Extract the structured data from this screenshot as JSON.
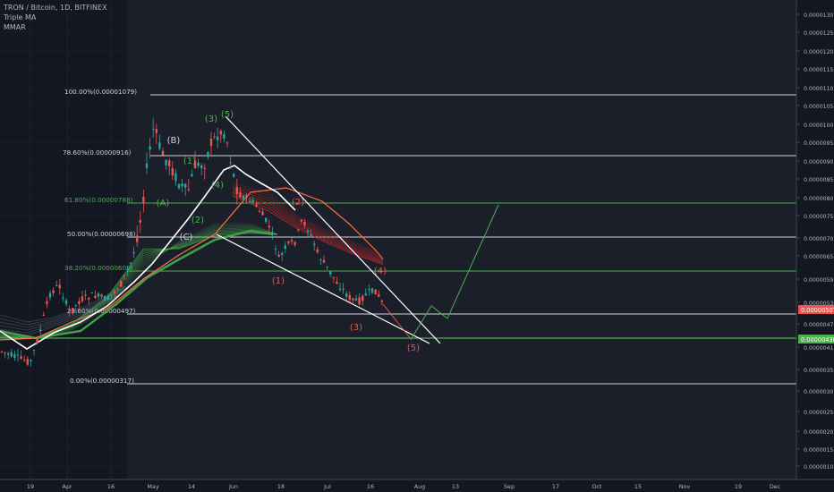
{
  "legend": {
    "symbol": "TRON / Bitcoin, 1D, BITFINEX",
    "indicator1": "Triple MA",
    "indicator2": "MMAR"
  },
  "price_axis": {
    "ticks": [
      "0.00001300",
      "0.00001250",
      "0.00001200",
      "0.00001150",
      "0.00001100",
      "0.00001050",
      "0.00001000",
      "0.00000950",
      "0.00000900",
      "0.00000850",
      "0.00000800",
      "0.00000750",
      "0.00000700",
      "0.00000650",
      "0.00000590",
      "0.00000530",
      "0.00000470",
      "0.00000410",
      "0.00000350",
      "0.00000300",
      "0.00000250",
      "0.00000200",
      "0.00000150",
      "0.00000100"
    ],
    "current_price_label": "0.00000507",
    "target_label": "0.00000438",
    "current_color": "#ef5350",
    "target_color": "#4caf50"
  },
  "time_axis": {
    "labels": [
      "19",
      "Apr",
      "16",
      "May",
      "14",
      "Jun",
      "18",
      "Jul",
      "16",
      "Aug",
      "13",
      "Sep",
      "17",
      "Oct",
      "15",
      "Nov",
      "19",
      "Dec"
    ]
  },
  "fib_levels": [
    {
      "label": "100.00%(0.00001079)",
      "color": "#d1d4dc"
    },
    {
      "label": "78.60%(0.00000916)",
      "color": "#d1d4dc"
    },
    {
      "label": "61.80%(0.00000788)",
      "color": "#4caf50"
    },
    {
      "label": "50.00%(0.00000698)",
      "color": "#d1d4dc"
    },
    {
      "label": "38.20%(0.00000608)",
      "color": "#4caf50"
    },
    {
      "label": "23.60%(0.00000497)",
      "color": "#d1d4dc"
    },
    {
      "label": "0.00%(0.00000317)",
      "color": "#d1d4dc"
    }
  ],
  "wave_labels": [
    {
      "text": "(A)",
      "color": "#4caf50"
    },
    {
      "text": "(B)",
      "color": "#d1d4dc"
    },
    {
      "text": "(C)",
      "color": "#d1d4dc"
    },
    {
      "text": "(1)",
      "color": "#4caf50"
    },
    {
      "text": "(2)",
      "color": "#4caf50"
    },
    {
      "text": "(3)",
      "color": "#4caf50"
    },
    {
      "text": "(4)",
      "color": "#4caf50"
    },
    {
      "text": "(5)",
      "color": "#4caf50"
    },
    {
      "text": "(1)",
      "color": "#ef5350"
    },
    {
      "text": "(2)",
      "color": "#ef5350"
    },
    {
      "text": "(3)",
      "color": "#ef5350"
    },
    {
      "text": "(4)",
      "color": "#ef5350"
    },
    {
      "text": "(5)",
      "color": "#ef5350"
    }
  ],
  "colors": {
    "background": "#131722",
    "up_candle": "#26a69a",
    "down_candle": "#ef5350",
    "ma_fast": "#ffffff",
    "ma_mid": "#ff7043",
    "ribbon": "#4caf50",
    "projection": "#4caf50"
  }
}
